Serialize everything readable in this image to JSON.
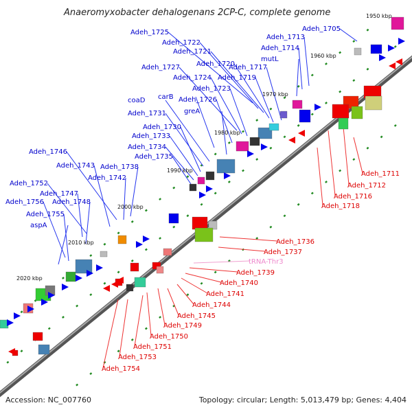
{
  "title": "Anaeromyxobacter dehalogenans 2CP-C, complete genome",
  "footer": {
    "accession": "Accession: NC_007760",
    "summary": "Topology: circular; Length: 5,013,479 bp; Genes: 4,404"
  },
  "colors": {
    "forward_label": "#0000cc",
    "reverse_label": "#dd0000",
    "trna_label": "#ee88cc",
    "backbone": "#888888",
    "forward_gene": "#0000ee",
    "reverse_gene": "#ee0000",
    "tick": "#228B22"
  },
  "kbp_marks": [
    "1950 kbp",
    "1960 kbp",
    "1970 kbp",
    "1980 kbp",
    "1990 kbp",
    "2000 kbp",
    "2010 kbp",
    "2020 kbp"
  ],
  "forward_labels": [
    "Adeh_1705",
    "Adeh_1713",
    "Adeh_1714",
    "mutL",
    "Adeh_1725",
    "Adeh_1722",
    "Adeh_1721",
    "Adeh_1720",
    "Adeh_1717",
    "Adeh_1727",
    "Adeh_1724",
    "Adeh_1719",
    "Adeh_1723",
    "carB",
    "Adeh_1726",
    "coaD",
    "greA",
    "Adeh_1731",
    "Adeh_1730",
    "Adeh_1733",
    "Adeh_1734",
    "Adeh_1735",
    "Adeh_1746",
    "Adeh_1743",
    "Adeh_1738",
    "Adeh_1742",
    "Adeh_1752",
    "Adeh_1747",
    "Adeh_1756",
    "Adeh_1748",
    "Adeh_1755",
    "aspA"
  ],
  "reverse_labels": [
    "Adeh_1711",
    "Adeh_1712",
    "Adeh_1716",
    "Adeh_1718",
    "Adeh_1736",
    "Adeh_1737",
    "tRNA-Thr3",
    "Adeh_1739",
    "Adeh_1740",
    "Adeh_1741",
    "Adeh_1744",
    "Adeh_1745",
    "Adeh_1749",
    "Adeh_1750",
    "Adeh_1751",
    "Adeh_1753",
    "Adeh_1754"
  ]
}
